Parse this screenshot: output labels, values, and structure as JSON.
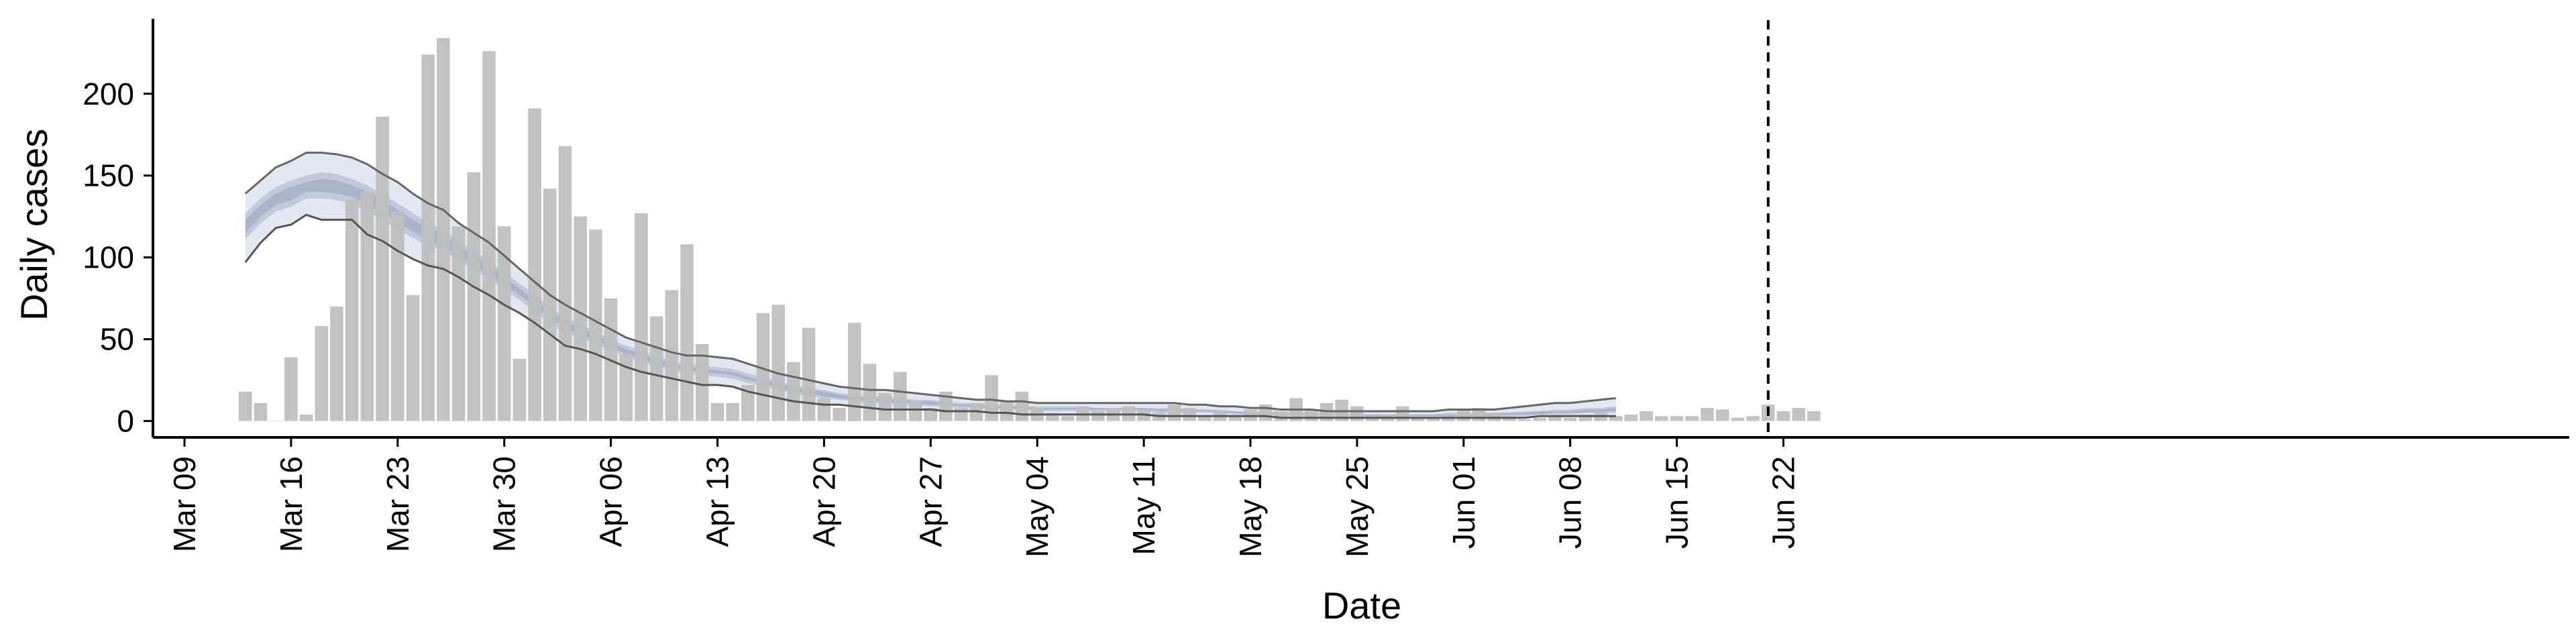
{
  "chart_data": {
    "type": "bar",
    "title": "",
    "xlabel": "Date",
    "ylabel": "Daily cases",
    "ylim": [
      -10,
      245
    ],
    "yticks": [
      0,
      50,
      100,
      150,
      200
    ],
    "xtick_labels": [
      "Mar 09",
      "Mar 16",
      "Mar 23",
      "Mar 30",
      "Apr 06",
      "Apr 13",
      "Apr 20",
      "Apr 27",
      "May 04",
      "May 11",
      "May 18",
      "May 25",
      "Jun 01",
      "Jun 08",
      "Jun 15",
      "Jun 22"
    ],
    "xtick_day_index": [
      0,
      7,
      14,
      21,
      28,
      35,
      42,
      49,
      56,
      63,
      70,
      77,
      84,
      91,
      98,
      105
    ],
    "date_origin": "Mar 09",
    "vline_day_index": 104,
    "vline_style": "dashed",
    "bar_color": "#bdbdbd",
    "bar_start_day_index": 4,
    "daily_cases": [
      18,
      11,
      0,
      39,
      4,
      58,
      70,
      135,
      140,
      186,
      128,
      77,
      224,
      234,
      119,
      152,
      226,
      119,
      38,
      191,
      142,
      168,
      125,
      117,
      75,
      41,
      127,
      64,
      80,
      108,
      47,
      11,
      11,
      22,
      66,
      71,
      36,
      57,
      14,
      8,
      60,
      35,
      17,
      30,
      12,
      8,
      18,
      8,
      11,
      28,
      12,
      18,
      8,
      5,
      3,
      9,
      6,
      8,
      9,
      7,
      5,
      10,
      8,
      3,
      6,
      3,
      7,
      10,
      6,
      14,
      7,
      11,
      13,
      9,
      3,
      4,
      9,
      2,
      2,
      3,
      7,
      8,
      5,
      3,
      1,
      2,
      3,
      2,
      4,
      6,
      3,
      4,
      6,
      3,
      3,
      3,
      8,
      7,
      2,
      3,
      10,
      6,
      8,
      6
    ],
    "model_day_index": [
      4,
      5,
      6,
      7,
      8,
      9,
      10,
      11,
      12,
      13,
      14,
      15,
      16,
      17,
      18,
      19,
      20,
      21,
      22,
      23,
      24,
      25,
      26,
      27,
      28,
      29,
      30,
      31,
      32,
      33,
      34,
      35,
      36,
      37,
      38,
      39,
      40,
      41,
      42,
      43,
      44,
      45,
      46,
      47,
      48,
      49,
      50,
      51,
      52,
      53,
      54,
      55,
      56,
      57,
      58,
      59,
      60,
      61,
      62,
      63,
      64,
      65,
      66,
      67,
      68,
      69,
      70,
      71,
      72,
      73,
      74,
      75,
      76,
      77,
      78,
      79,
      80,
      81,
      82,
      83,
      84,
      85,
      86,
      87,
      88,
      89,
      90,
      91,
      92,
      93,
      94
    ],
    "series": [
      {
        "name": "outer_band",
        "color": "#e3e7f0",
        "upper": [
          139,
          147,
          155,
          159,
          164,
          164,
          163,
          161,
          157,
          151,
          146,
          139,
          133,
          129,
          121,
          115,
          109,
          101,
          93,
          85,
          77,
          71,
          66,
          61,
          56,
          51,
          48,
          45,
          42,
          40,
          40,
          39,
          38,
          35,
          32,
          29,
          27,
          25,
          23,
          21,
          20,
          19,
          19,
          18,
          17,
          16,
          15,
          14,
          13,
          13,
          12,
          12,
          11,
          11,
          11,
          11,
          11,
          11,
          11,
          11,
          11,
          11,
          10,
          10,
          9,
          9,
          8,
          8,
          7,
          7,
          7,
          6,
          6,
          6,
          6,
          6,
          6,
          6,
          6,
          7,
          7,
          7,
          7,
          8,
          9,
          10,
          11,
          11,
          12,
          13,
          14
        ],
        "lower": [
          97,
          109,
          118,
          120,
          126,
          123,
          123,
          123,
          114,
          110,
          104,
          99,
          95,
          93,
          88,
          82,
          77,
          71,
          66,
          60,
          53,
          46,
          44,
          41,
          37,
          33,
          30,
          28,
          26,
          24,
          22,
          22,
          21,
          18,
          16,
          14,
          12,
          11,
          10,
          10,
          9,
          8,
          7,
          7,
          7,
          7,
          6,
          6,
          6,
          5,
          5,
          4,
          4,
          4,
          4,
          4,
          4,
          4,
          4,
          4,
          3,
          3,
          3,
          3,
          3,
          3,
          3,
          3,
          2,
          2,
          2,
          2,
          2,
          2,
          2,
          2,
          2,
          2,
          2,
          2,
          2,
          2,
          2,
          2,
          2,
          3,
          3,
          3,
          3,
          3,
          3
        ]
      },
      {
        "name": "inner_band",
        "color": "#c1c9dd",
        "upper": [
          127,
          136,
          143,
          147,
          150,
          152,
          151,
          148,
          144,
          139,
          133,
          127,
          121,
          117,
          110,
          104,
          98,
          91,
          84,
          77,
          70,
          63,
          59,
          55,
          50,
          46,
          43,
          40,
          37,
          35,
          34,
          33,
          32,
          29,
          27,
          24,
          22,
          20,
          19,
          17,
          16,
          15,
          15,
          14,
          13,
          13,
          12,
          11,
          11,
          10,
          10,
          9,
          9,
          9,
          9,
          9,
          8,
          8,
          8,
          8,
          8,
          8,
          7,
          7,
          7,
          6,
          6,
          6,
          5,
          5,
          5,
          5,
          5,
          4,
          4,
          4,
          4,
          4,
          4,
          5,
          5,
          5,
          5,
          5,
          6,
          6,
          7,
          7,
          8,
          8,
          9
        ],
        "lower": [
          111,
          121,
          128,
          131,
          136,
          136,
          135,
          133,
          128,
          123,
          117,
          112,
          107,
          104,
          98,
          92,
          87,
          80,
          74,
          67,
          60,
          54,
          51,
          47,
          43,
          39,
          36,
          34,
          31,
          29,
          28,
          27,
          26,
          23,
          21,
          19,
          17,
          15,
          14,
          13,
          12,
          11,
          11,
          10,
          10,
          9,
          9,
          8,
          8,
          7,
          7,
          7,
          6,
          6,
          6,
          6,
          6,
          6,
          6,
          6,
          5,
          5,
          5,
          5,
          5,
          4,
          4,
          4,
          3,
          3,
          3,
          3,
          3,
          3,
          3,
          3,
          3,
          3,
          3,
          3,
          3,
          3,
          3,
          3,
          3,
          4,
          4,
          4,
          5,
          5,
          5
        ]
      },
      {
        "name": "core_band",
        "color": "#a9b4cb",
        "upper": [
          123,
          132,
          139,
          143,
          146,
          148,
          147,
          144,
          140,
          135,
          129,
          123,
          118,
          114,
          107,
          101,
          95,
          88,
          81,
          74,
          67,
          61,
          57,
          53,
          48,
          44,
          41,
          38,
          35,
          33,
          32,
          31,
          30,
          27,
          25,
          23,
          21,
          19,
          18,
          16,
          15,
          14,
          14,
          13,
          12,
          12,
          11,
          10,
          10,
          9,
          9,
          9,
          8,
          8,
          8,
          8,
          8,
          8,
          8,
          8,
          7,
          7,
          7,
          7,
          6,
          6,
          5,
          5,
          5,
          5,
          5,
          4,
          4,
          4,
          4,
          4,
          4,
          4,
          4,
          4,
          4,
          4,
          5,
          5,
          5,
          6,
          6,
          6,
          7,
          7,
          8
        ],
        "lower": [
          115,
          125,
          132,
          135,
          140,
          140,
          139,
          137,
          132,
          127,
          121,
          116,
          110,
          107,
          101,
          95,
          90,
          83,
          77,
          70,
          63,
          57,
          53,
          49,
          45,
          41,
          38,
          35,
          33,
          31,
          30,
          29,
          28,
          25,
          23,
          20,
          18,
          17,
          15,
          14,
          13,
          12,
          12,
          11,
          11,
          10,
          10,
          9,
          9,
          8,
          8,
          7,
          7,
          7,
          7,
          7,
          7,
          7,
          7,
          7,
          6,
          6,
          6,
          6,
          5,
          5,
          4,
          4,
          4,
          4,
          4,
          4,
          4,
          3,
          3,
          3,
          3,
          3,
          3,
          3,
          3,
          3,
          3,
          4,
          4,
          4,
          5,
          5,
          5,
          6,
          6
        ]
      },
      {
        "name": "upper_line",
        "color": "#666666",
        "width": 3
      },
      {
        "name": "lower_line",
        "color": "#555555",
        "width": 3
      }
    ]
  }
}
